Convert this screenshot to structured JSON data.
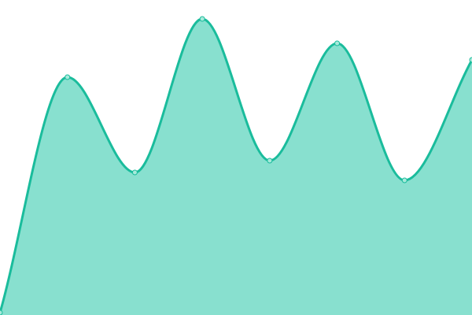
{
  "chart_data": {
    "type": "area",
    "x": [
      0,
      1,
      2,
      3,
      4,
      5,
      6,
      7
    ],
    "series": [
      {
        "values": [
          3,
          302,
          181,
          376,
          196,
          345,
          171,
          324
        ]
      }
    ],
    "ylim": [
      0,
      400
    ],
    "grid": false,
    "axes_visible": false,
    "curve": "smooth",
    "colors": {
      "line": "#1abc9c",
      "fill": "#88e0cf",
      "point_fill": "#a8eadb"
    }
  }
}
